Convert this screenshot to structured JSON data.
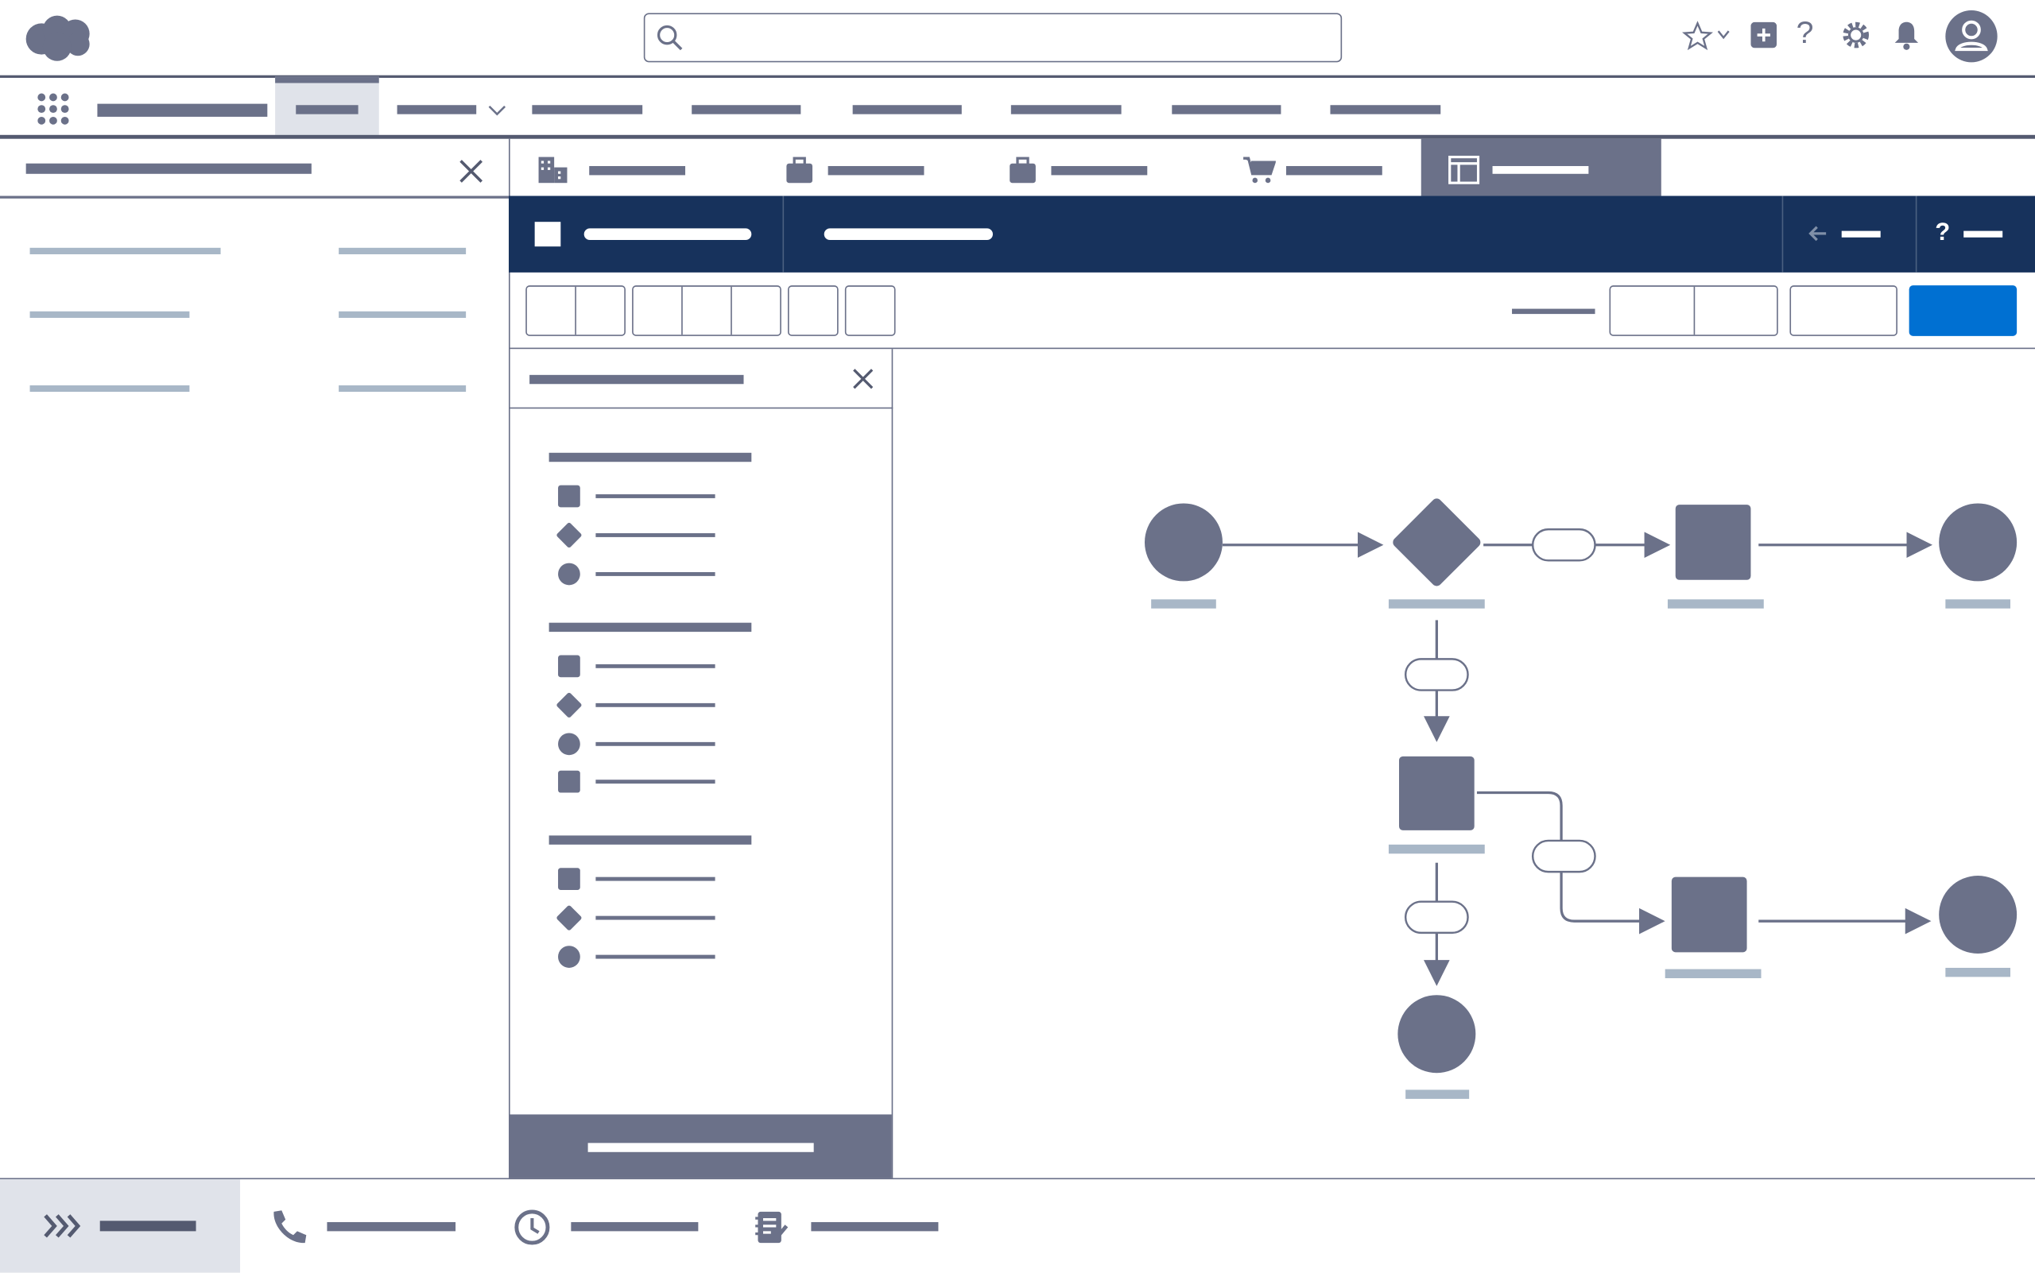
{
  "app": {
    "logo": "salesforce-cloud-logo"
  },
  "colors": {
    "primary_gray": "#6b7189",
    "navy": "#17325c",
    "accent_blue": "#0070d2",
    "light_bar": "#a8b7c7",
    "active_tab_bg": "#e0e3ea",
    "divider": "#545a70"
  },
  "header": {
    "search": {
      "placeholder": "",
      "icon": "search-icon"
    },
    "icons": [
      "star-icon",
      "chevron-down-icon",
      "plus-icon",
      "help-icon",
      "gear-icon",
      "bell-icon",
      "avatar-icon"
    ]
  },
  "nav": {
    "launcher_icon": "app-launcher-icon",
    "items_count_note": ""
  },
  "workspace_tabs": {
    "icons": [
      "building-icon",
      "briefcase-icon",
      "briefcase-icon",
      "cart-icon",
      "layout-icon"
    ],
    "active_index": 4
  },
  "builder_header": {
    "icons": [
      "square-icon",
      "arrow-left-icon",
      "help-icon"
    ]
  },
  "toolbar": {
    "primary_button_color": "#0070d2"
  },
  "palette": {
    "close_icon": "close-icon",
    "groups": [
      {
        "items": [
          "square-icon",
          "diamond-icon",
          "circle-icon"
        ]
      },
      {
        "items": [
          "square-icon",
          "diamond-icon",
          "circle-icon",
          "square-icon"
        ]
      },
      {
        "items": [
          "square-icon",
          "diamond-icon",
          "circle-icon"
        ]
      }
    ]
  },
  "utility_bar": {
    "icons": [
      "chevrons-right-icon",
      "phone-icon",
      "clock-icon",
      "notes-icon"
    ]
  }
}
